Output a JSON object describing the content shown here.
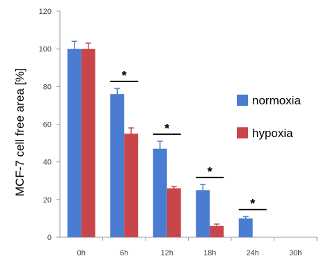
{
  "chart_data": {
    "type": "bar",
    "title": "",
    "xlabel": "",
    "ylabel": "MCF-7 cell free area [%]",
    "ylim": [
      0,
      120
    ],
    "yticks": [
      0,
      20,
      40,
      60,
      80,
      100,
      120
    ],
    "categories": [
      "0h",
      "6h",
      "12h",
      "18h",
      "24h",
      "30h"
    ],
    "series": [
      {
        "name": "normoxia",
        "color": "#4a7dd1",
        "values": [
          100,
          76,
          47,
          25,
          10,
          null
        ],
        "errors": [
          4,
          3,
          4,
          3,
          1,
          null
        ]
      },
      {
        "name": "hypoxia",
        "color": "#c8464b",
        "values": [
          100,
          55,
          26,
          6,
          null,
          null
        ],
        "errors": [
          3,
          3,
          1,
          1,
          null,
          null
        ]
      }
    ],
    "significance": [
      {
        "category": "6h",
        "label": "*"
      },
      {
        "category": "12h",
        "label": "*"
      },
      {
        "category": "18h",
        "label": "*"
      },
      {
        "category": "24h",
        "label": "*"
      }
    ],
    "legend_position": "right",
    "grid": false
  }
}
